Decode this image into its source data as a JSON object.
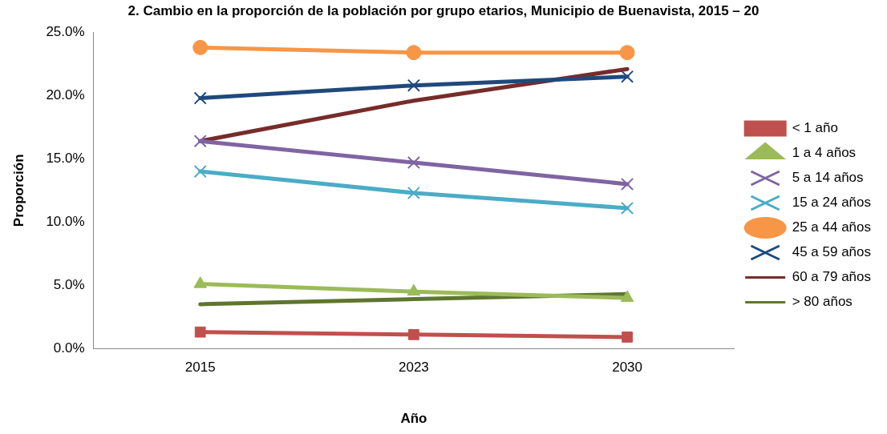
{
  "chart_data": {
    "type": "line",
    "title": "2. Cambio en la proporción de la población por grupo etarios, Municipio de Buenavista, 2015 – 20",
    "xlabel": "Año",
    "ylabel": "Proporción",
    "categories": [
      "2015",
      "2023",
      "2030"
    ],
    "series": [
      {
        "name": "< 1 año",
        "color": "#c0504d",
        "marker": "square",
        "values": [
          1.3,
          1.1,
          0.9
        ]
      },
      {
        "name": "1 a 4 años",
        "color": "#9bbb59",
        "marker": "triangle",
        "values": [
          5.1,
          4.5,
          4.0
        ]
      },
      {
        "name": "5 a 14 años",
        "color": "#8064a2",
        "marker": "cross",
        "values": [
          16.4,
          14.7,
          13.0
        ]
      },
      {
        "name": "15 a 24 años",
        "color": "#4bacc6",
        "marker": "cross",
        "values": [
          14.0,
          12.3,
          11.1
        ]
      },
      {
        "name": "25 a 44 años",
        "color": "#f79646",
        "marker": "circle",
        "values": [
          23.8,
          23.4,
          23.4
        ]
      },
      {
        "name": "45 a 59 años",
        "color": "#1f497d",
        "marker": "cross",
        "values": [
          19.8,
          20.8,
          21.5
        ]
      },
      {
        "name": "60 a 79 años",
        "color": "#772c2a",
        "marker": "none",
        "values": [
          16.4,
          19.6,
          22.1
        ]
      },
      {
        "name": "> 80 años",
        "color": "#5f7530",
        "marker": "none",
        "values": [
          3.5,
          3.9,
          4.3
        ]
      }
    ],
    "ylim": [
      0,
      25
    ],
    "yticks": [
      {
        "value": 0,
        "label": "0.0%"
      },
      {
        "value": 5,
        "label": "5.0%"
      },
      {
        "value": 10,
        "label": "10.0%"
      },
      {
        "value": 15,
        "label": "15.0%"
      },
      {
        "value": 20,
        "label": "20.0%"
      },
      {
        "value": 25,
        "label": "25.0%"
      }
    ],
    "grid": false,
    "legend": "right",
    "line_style": "solid"
  }
}
